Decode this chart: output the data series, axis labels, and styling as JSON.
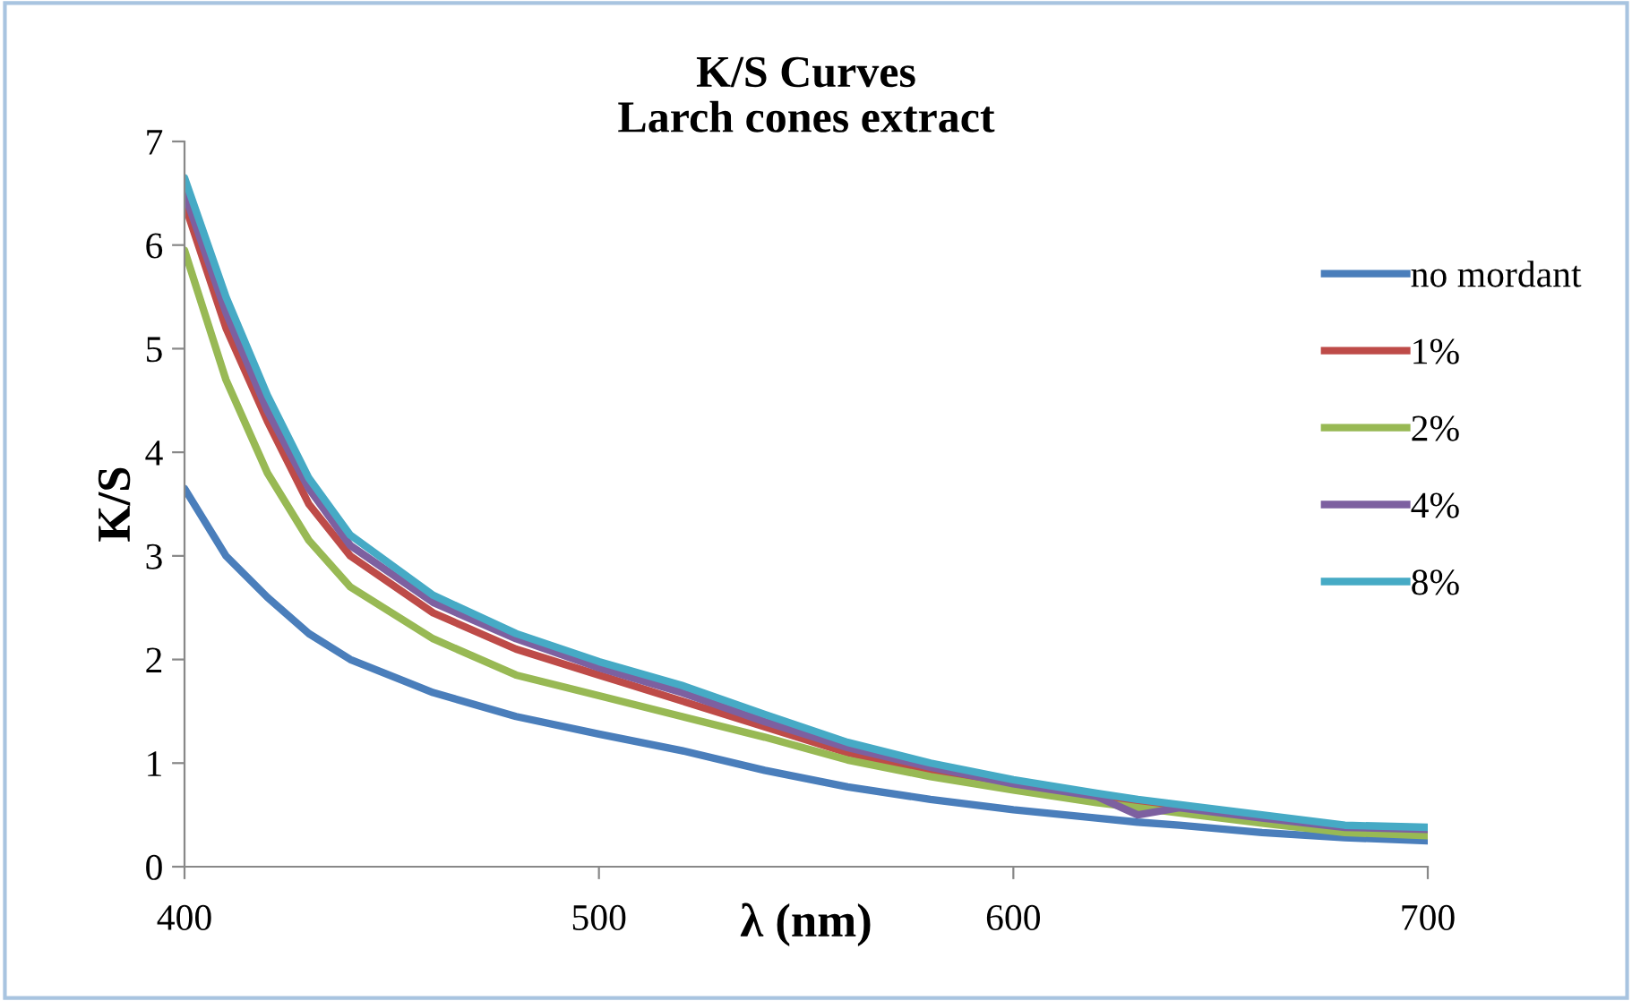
{
  "chart_data": {
    "type": "line",
    "title": "K/S Curves\nLarch cones extract",
    "xlabel": "λ (nm)",
    "ylabel": "K/S",
    "xlim": [
      400,
      700
    ],
    "xticks": [
      400,
      500,
      600,
      700
    ],
    "ylim": [
      0,
      7
    ],
    "yticks": [
      0,
      1,
      2,
      3,
      4,
      5,
      6,
      7
    ],
    "grid": false,
    "legend": "right",
    "marker": "none",
    "line_style": "solid",
    "x": [
      400,
      410,
      420,
      430,
      440,
      460,
      480,
      500,
      520,
      540,
      560,
      580,
      600,
      620,
      630,
      640,
      660,
      680,
      700
    ],
    "series": [
      {
        "name": "no mordant",
        "color": "#4a7ebb",
        "values": [
          3.65,
          3.0,
          2.6,
          2.25,
          2.0,
          1.68,
          1.45,
          1.28,
          1.12,
          0.93,
          0.77,
          0.65,
          0.55,
          0.47,
          0.43,
          0.4,
          0.33,
          0.28,
          0.25
        ]
      },
      {
        "name": "1%",
        "color": "#be4b48",
        "values": [
          6.4,
          5.2,
          4.3,
          3.5,
          3.0,
          2.45,
          2.1,
          1.85,
          1.6,
          1.35,
          1.1,
          0.92,
          0.78,
          0.65,
          0.6,
          0.55,
          0.45,
          null,
          null
        ]
      },
      {
        "name": "2%",
        "color": "#98b954",
        "values": [
          5.95,
          4.7,
          3.8,
          3.15,
          2.7,
          2.2,
          1.85,
          1.65,
          1.45,
          1.25,
          1.03,
          0.87,
          0.74,
          0.62,
          0.57,
          0.52,
          0.42,
          0.33,
          0.3
        ]
      },
      {
        "name": "4%",
        "color": "#7d60a0",
        "values": [
          6.5,
          5.35,
          4.4,
          3.65,
          3.1,
          2.55,
          2.2,
          1.92,
          1.68,
          1.4,
          1.15,
          0.96,
          0.8,
          0.68,
          0.5,
          0.57,
          0.47,
          0.38,
          0.36
        ]
      },
      {
        "name": "8%",
        "color": "#46aac5",
        "values": [
          6.65,
          5.5,
          4.55,
          3.75,
          3.2,
          2.62,
          2.25,
          1.98,
          1.75,
          1.47,
          1.2,
          1.0,
          0.84,
          0.71,
          0.65,
          0.6,
          0.5,
          0.4,
          0.38
        ]
      }
    ]
  }
}
